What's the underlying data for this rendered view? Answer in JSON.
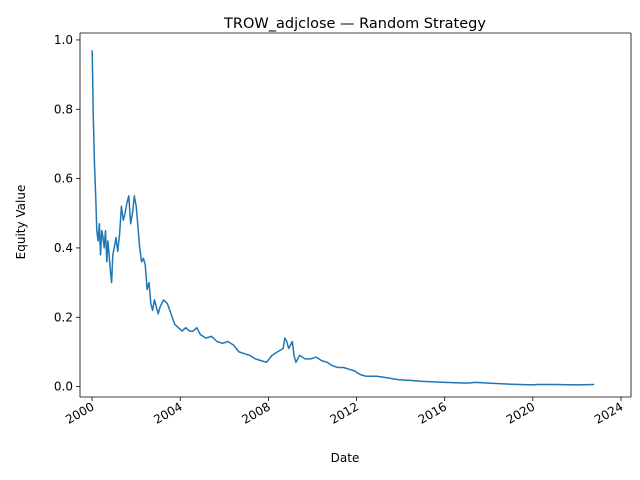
{
  "chart_data": {
    "type": "line",
    "title": "TROW_adjclose — Random Strategy",
    "xlabel": "Date",
    "ylabel": "Equity Value",
    "xlim": [
      "1999-06-15",
      "2024-06-15"
    ],
    "ylim": [
      -0.03,
      1.02
    ],
    "x_ticks": [
      "2000",
      "2004",
      "2008",
      "2012",
      "2016",
      "2020",
      "2024"
    ],
    "y_ticks": [
      "0.0",
      "0.2",
      "0.4",
      "0.6",
      "0.8",
      "1.0"
    ],
    "grid": false,
    "legend": "none",
    "series": [
      {
        "color": "#1f77b4",
        "x": [
          "2000-01-03",
          "2000-01-20",
          "2000-02-10",
          "2000-03-01",
          "2000-03-20",
          "2000-04-10",
          "2000-05-01",
          "2000-05-20",
          "2000-06-10",
          "2000-07-01",
          "2000-07-20",
          "2000-08-10",
          "2000-09-01",
          "2000-09-20",
          "2000-10-10",
          "2000-11-01",
          "2000-11-20",
          "2000-12-10",
          "2001-01-01",
          "2001-02-01",
          "2001-03-01",
          "2001-04-01",
          "2001-05-01",
          "2001-06-01",
          "2001-07-01",
          "2001-08-01",
          "2001-09-01",
          "2001-10-01",
          "2001-11-01",
          "2001-12-01",
          "2002-01-01",
          "2002-02-01",
          "2002-03-01",
          "2002-04-01",
          "2002-05-01",
          "2002-06-01",
          "2002-07-01",
          "2002-08-01",
          "2002-09-01",
          "2002-10-01",
          "2002-11-01",
          "2002-12-01",
          "2003-01-01",
          "2003-02-01",
          "2003-04-01",
          "2003-06-01",
          "2003-08-01",
          "2003-10-01",
          "2003-12-01",
          "2004-02-01",
          "2004-04-01",
          "2004-06-01",
          "2004-08-01",
          "2004-10-01",
          "2004-12-01",
          "2005-03-01",
          "2005-06-01",
          "2005-09-01",
          "2005-12-01",
          "2006-03-01",
          "2006-06-01",
          "2006-09-01",
          "2006-12-01",
          "2007-03-01",
          "2007-06-01",
          "2007-09-01",
          "2007-12-01",
          "2008-03-01",
          "2008-06-01",
          "2008-09-01",
          "2008-10-01",
          "2008-11-01",
          "2008-12-01",
          "2009-01-01",
          "2009-02-01",
          "2009-03-01",
          "2009-04-01",
          "2009-06-01",
          "2009-09-01",
          "2009-12-01",
          "2010-03-01",
          "2010-06-01",
          "2010-09-01",
          "2010-12-01",
          "2011-03-01",
          "2011-06-01",
          "2011-09-01",
          "2011-12-01",
          "2012-03-01",
          "2012-06-01",
          "2012-12-01",
          "2013-06-01",
          "2013-12-01",
          "2014-06-01",
          "2015-01-01",
          "2016-01-01",
          "2017-01-01",
          "2017-06-01",
          "2018-01-01",
          "2019-01-01",
          "2020-01-01",
          "2020-03-01",
          "2021-01-01",
          "2022-01-01",
          "2022-10-15"
        ],
        "y": [
          0.97,
          0.79,
          0.64,
          0.55,
          0.45,
          0.42,
          0.47,
          0.38,
          0.45,
          0.43,
          0.4,
          0.45,
          0.36,
          0.42,
          0.38,
          0.33,
          0.3,
          0.38,
          0.4,
          0.43,
          0.39,
          0.44,
          0.52,
          0.48,
          0.5,
          0.53,
          0.55,
          0.47,
          0.5,
          0.55,
          0.52,
          0.46,
          0.4,
          0.36,
          0.37,
          0.35,
          0.28,
          0.3,
          0.24,
          0.22,
          0.25,
          0.23,
          0.21,
          0.23,
          0.25,
          0.24,
          0.21,
          0.18,
          0.17,
          0.16,
          0.17,
          0.16,
          0.16,
          0.17,
          0.15,
          0.14,
          0.145,
          0.13,
          0.125,
          0.13,
          0.12,
          0.1,
          0.095,
          0.09,
          0.08,
          0.075,
          0.07,
          0.09,
          0.1,
          0.11,
          0.14,
          0.13,
          0.11,
          0.12,
          0.13,
          0.09,
          0.07,
          0.09,
          0.08,
          0.08,
          0.085,
          0.075,
          0.07,
          0.06,
          0.055,
          0.055,
          0.05,
          0.045,
          0.035,
          0.03,
          0.03,
          0.025,
          0.02,
          0.018,
          0.015,
          0.012,
          0.01,
          0.012,
          0.01,
          0.007,
          0.005,
          0.006,
          0.006,
          0.005,
          0.006
        ]
      }
    ]
  }
}
